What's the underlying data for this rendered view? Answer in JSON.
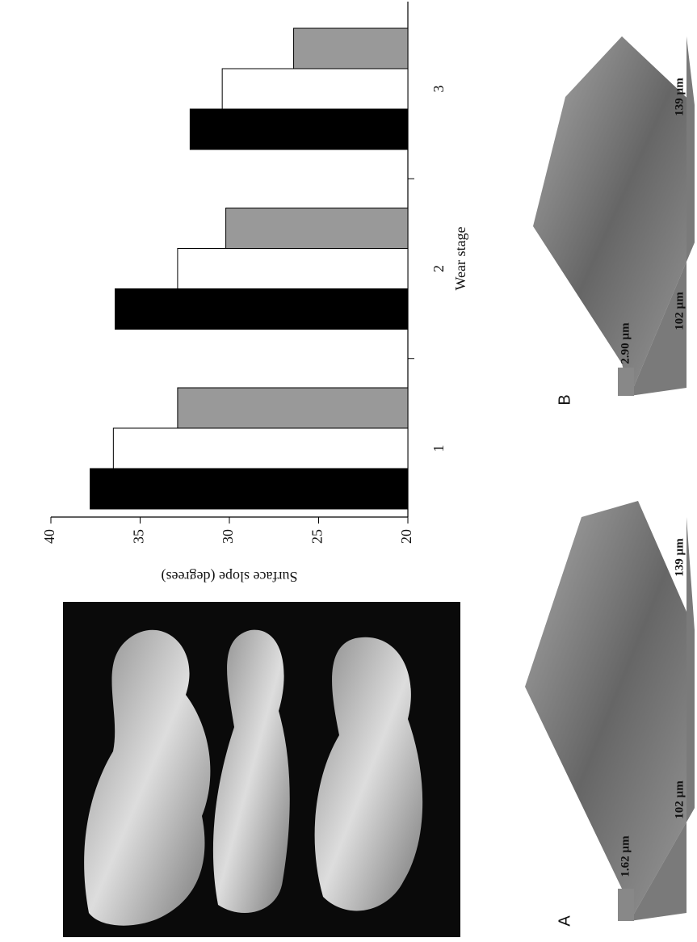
{
  "chart_data": {
    "type": "bar",
    "x_label": "Wear stage",
    "y_label": "Surface slope (degrees)",
    "categories": [
      "1",
      "2",
      "3"
    ],
    "series": [
      {
        "color": "#000000",
        "values": [
          37.8,
          36.4,
          32.2
        ]
      },
      {
        "color": "#ffffff",
        "values": [
          36.5,
          32.9,
          30.4
        ]
      },
      {
        "color": "#999999",
        "values": [
          32.9,
          30.2,
          26.4
        ]
      }
    ],
    "ylim": [
      20,
      40
    ],
    "yticks": [
      20,
      25,
      30,
      35,
      40
    ]
  },
  "panels": [
    {
      "label": "A",
      "height": "1.62 µm",
      "width": "102 µm",
      "length": "139 µm"
    },
    {
      "label": "B",
      "height": "2.90 µm",
      "width": "102 µm",
      "length": "139 µm"
    }
  ]
}
